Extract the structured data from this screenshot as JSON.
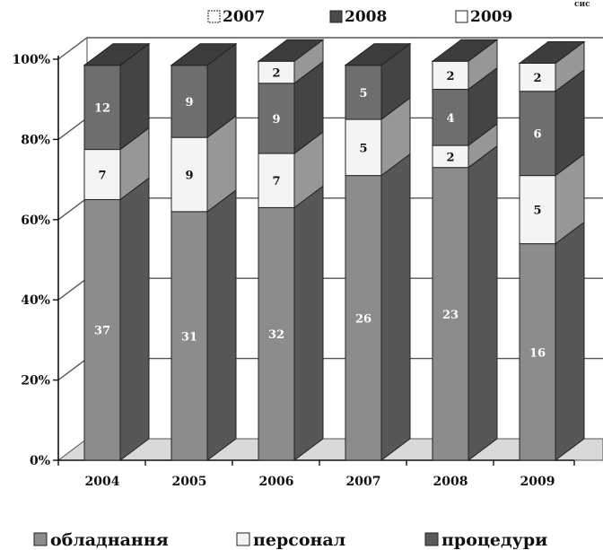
{
  "corner_text": "сис",
  "top_legend": [
    {
      "label": "2007",
      "icon": "dotted-square-icon"
    },
    {
      "label": "2008",
      "icon": "dark-square-icon"
    },
    {
      "label": "2009",
      "icon": "white-square-icon"
    }
  ],
  "chart_data": {
    "type": "bar",
    "stacked": true,
    "three_d": true,
    "categories": [
      "2004",
      "2005",
      "2006",
      "2007",
      "2008",
      "2009"
    ],
    "series": [
      {
        "name": "обладнання",
        "values": [
          37,
          31,
          32,
          26,
          23,
          16
        ],
        "color": "#8c8c8c"
      },
      {
        "name": "персонал",
        "values": [
          7,
          9,
          7,
          5,
          2,
          5
        ],
        "color": "#f4f4f4"
      },
      {
        "name": "процедури",
        "values": [
          12,
          9,
          9,
          5,
          4,
          6
        ],
        "color": "#6e6e6e"
      },
      {
        "name": "",
        "values": [
          null,
          null,
          2,
          null,
          2,
          2
        ],
        "color": "#f4f4f4"
      }
    ],
    "shares": [
      [
        0.65,
        0.125,
        0.21,
        0
      ],
      [
        0.62,
        0.185,
        0.18,
        0
      ],
      [
        0.63,
        0.135,
        0.175,
        0.055
      ],
      [
        0.71,
        0.14,
        0.135,
        0
      ],
      [
        0.73,
        0.055,
        0.14,
        0.07
      ],
      [
        0.54,
        0.17,
        0.21,
        0.07
      ]
    ],
    "y_ticks": [
      "0%",
      "20%",
      "40%",
      "60%",
      "80%",
      "100%"
    ],
    "ylim": [
      0,
      100
    ],
    "grid": true,
    "legend": "bottom"
  }
}
